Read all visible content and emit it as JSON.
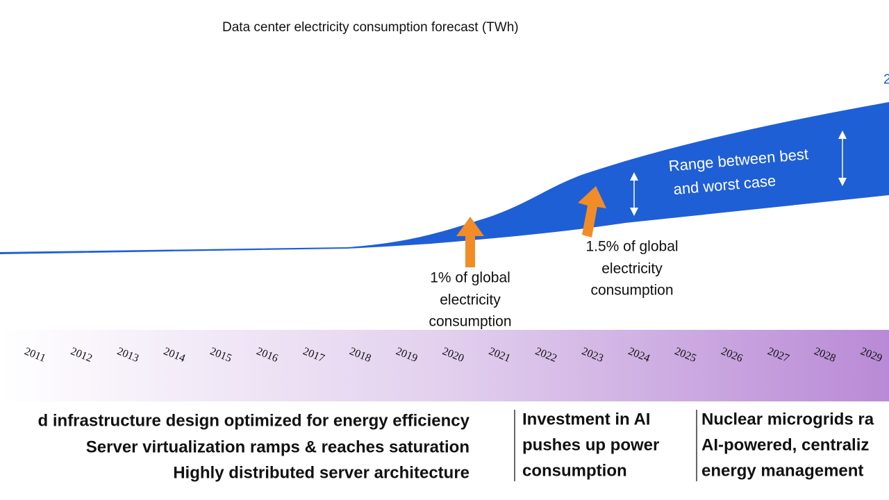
{
  "title": "Data center electricity consumption forecast (TWh)",
  "corner_label": "2",
  "band_label": [
    "Range between best",
    "and worst case"
  ],
  "annotations": [
    {
      "lines": [
        "1% of global",
        "electricity",
        "consumption"
      ]
    },
    {
      "lines": [
        "1.5% of global",
        "electricity",
        "consumption"
      ]
    }
  ],
  "years": [
    "2011",
    "2012",
    "2013",
    "2014",
    "2015",
    "2016",
    "2017",
    "2018",
    "2019",
    "2020",
    "2021",
    "2022",
    "2023",
    "2024",
    "2025",
    "2026",
    "2027",
    "2028",
    "2029"
  ],
  "phases": [
    {
      "lines": [
        "d infrastructure design optimized for energy efficiency",
        "Server virtualization ramps & reaches saturation",
        "Highly distributed server architecture"
      ]
    },
    {
      "lines": [
        "Investment in AI",
        "pushes up power",
        "consumption"
      ]
    },
    {
      "lines": [
        "Nuclear microgrids ra",
        "AI-powered, centraliz",
        "energy management"
      ]
    }
  ]
}
